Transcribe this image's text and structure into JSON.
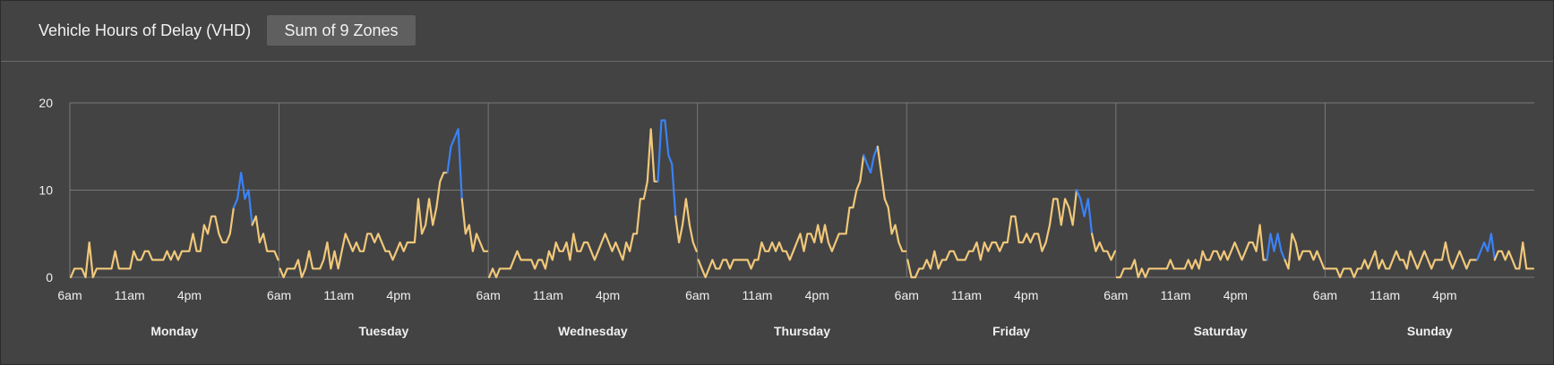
{
  "header": {
    "title": "Vehicle Hours of Delay (VHD)",
    "zone_button": "Sum of 9 Zones"
  },
  "colors": {
    "normal": "#f1c87a",
    "peak": "#3b82f6",
    "grid": "#787878",
    "axis_text": "#f0f0f0"
  },
  "chart_data": {
    "type": "line",
    "title": "Vehicle Hours of Delay (VHD)",
    "ylim": [
      0,
      20
    ],
    "y_ticks": [
      0,
      10,
      20
    ],
    "x_ticks": [
      "6am",
      "11am",
      "4pm"
    ],
    "grid": true,
    "days": [
      {
        "name": "Monday",
        "values": [
          0,
          1,
          1,
          1,
          0,
          4,
          0,
          1,
          1,
          1,
          1,
          1,
          3,
          1,
          1,
          1,
          1,
          3,
          2,
          2,
          3,
          3,
          2,
          2,
          2,
          2,
          3,
          2,
          3,
          2,
          3,
          3,
          3,
          5,
          3,
          3,
          6,
          5,
          7,
          7,
          5,
          4,
          4,
          5,
          8,
          9,
          12,
          9,
          10,
          6,
          7,
          4,
          5,
          3,
          3,
          3,
          2
        ],
        "peak_ranges": [
          [
            44,
            49
          ]
        ]
      },
      {
        "name": "Tuesday",
        "values": [
          1,
          0,
          1,
          1,
          1,
          2,
          0,
          1,
          3,
          1,
          1,
          1,
          2,
          4,
          1,
          3,
          1,
          3,
          5,
          4,
          3,
          4,
          3,
          3,
          5,
          5,
          4,
          5,
          4,
          3,
          3,
          2,
          3,
          4,
          3,
          4,
          4,
          4,
          9,
          5,
          6,
          9,
          6,
          8,
          11,
          12,
          12,
          15,
          16,
          17,
          9,
          5,
          6,
          3,
          5,
          4,
          3,
          3
        ],
        "peak_ranges": [
          [
            46,
            50
          ]
        ]
      },
      {
        "name": "Wednesday",
        "values": [
          0,
          1,
          0,
          1,
          1,
          1,
          1,
          2,
          3,
          2,
          2,
          2,
          2,
          1,
          2,
          2,
          1,
          3,
          2,
          4,
          3,
          3,
          4,
          2,
          5,
          3,
          3,
          4,
          4,
          3,
          2,
          3,
          4,
          5,
          4,
          3,
          4,
          3,
          2,
          4,
          3,
          5,
          5,
          9,
          9,
          11,
          17,
          11,
          11,
          18,
          18,
          14,
          13,
          7,
          4,
          6,
          9,
          6,
          4,
          3
        ],
        "peak_ranges": [
          [
            48,
            53
          ]
        ]
      },
      {
        "name": "Thursday",
        "values": [
          2,
          1,
          0,
          1,
          2,
          1,
          1,
          2,
          2,
          1,
          2,
          2,
          2,
          2,
          2,
          1,
          2,
          2,
          4,
          3,
          3,
          4,
          3,
          4,
          3,
          3,
          2,
          3,
          4,
          5,
          3,
          5,
          5,
          4,
          6,
          4,
          6,
          4,
          3,
          4,
          5,
          5,
          5,
          8,
          8,
          10,
          11,
          14,
          13,
          12,
          14,
          15,
          12,
          9,
          8,
          5,
          6,
          4,
          3,
          3
        ],
        "peak_ranges": [
          [
            47,
            51
          ]
        ]
      },
      {
        "name": "Friday",
        "values": [
          2,
          0,
          0,
          1,
          1,
          2,
          1,
          3,
          1,
          2,
          2,
          3,
          3,
          2,
          2,
          2,
          3,
          3,
          4,
          2,
          4,
          3,
          4,
          4,
          3,
          4,
          4,
          7,
          7,
          4,
          4,
          5,
          4,
          5,
          5,
          3,
          4,
          6,
          9,
          9,
          6,
          9,
          8,
          6,
          10,
          9,
          7,
          9,
          5,
          3,
          4,
          3,
          3,
          2,
          3
        ],
        "peak_ranges": [
          [
            44,
            48
          ]
        ]
      },
      {
        "name": "Saturday",
        "values": [
          0,
          0,
          1,
          1,
          1,
          2,
          0,
          1,
          0,
          1,
          1,
          1,
          1,
          1,
          1,
          2,
          1,
          1,
          1,
          1,
          2,
          1,
          2,
          1,
          3,
          2,
          2,
          3,
          3,
          2,
          3,
          2,
          3,
          4,
          3,
          2,
          3,
          4,
          4,
          3,
          6,
          2,
          2,
          5,
          3,
          5,
          3,
          2,
          1,
          5,
          4,
          2,
          3,
          3,
          3,
          2,
          3,
          2,
          1
        ],
        "peak_ranges": [
          [
            42,
            47
          ]
        ]
      },
      {
        "name": "Sunday",
        "values": [
          1,
          1,
          1,
          1,
          0,
          1,
          1,
          1,
          0,
          1,
          1,
          2,
          1,
          2,
          3,
          1,
          2,
          1,
          1,
          2,
          3,
          2,
          2,
          1,
          3,
          2,
          1,
          2,
          3,
          2,
          1,
          2,
          2,
          2,
          4,
          2,
          1,
          2,
          3,
          2,
          1,
          2,
          2,
          2,
          3,
          4,
          3,
          5,
          2,
          3,
          3,
          2,
          3,
          2,
          1,
          1,
          4,
          1,
          1,
          1
        ],
        "peak_ranges": [
          [
            43,
            48
          ]
        ]
      }
    ]
  }
}
